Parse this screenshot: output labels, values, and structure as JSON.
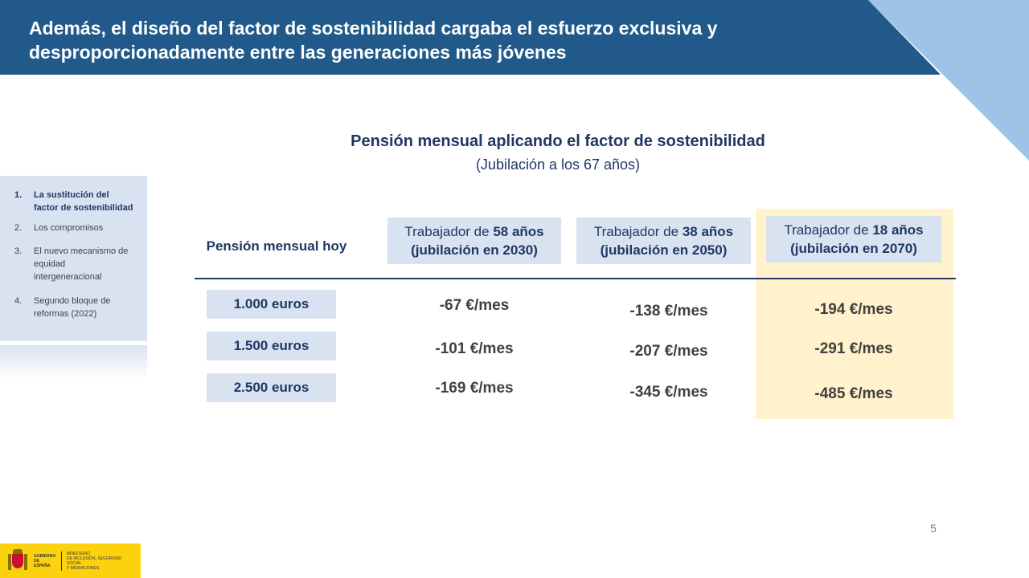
{
  "header": {
    "title": "Además, el diseño del factor de sostenibilidad cargaba el esfuerzo exclusiva y desproporcionadamente entre las generaciones más jóvenes"
  },
  "sidebar": {
    "items": [
      {
        "num": "1.",
        "label": "La sustitución del factor de sostenibilidad",
        "active": true
      },
      {
        "num": "2.",
        "label": "Los compromisos",
        "active": false
      },
      {
        "num": "3.",
        "label": "El nuevo mecanismo de equidad intergeneracional",
        "active": false
      },
      {
        "num": "4.",
        "label": "Segundo bloque de reformas (2022)",
        "active": false
      }
    ]
  },
  "table": {
    "title": "Pensión mensual aplicando el factor de sostenibilidad",
    "subtitle": "(Jubilación a los 67 años)",
    "row_header": "Pensión mensual hoy",
    "columns": [
      {
        "prefix": "Trabajador de ",
        "age": "58 años",
        "retirement": "(jubilación en 2030)"
      },
      {
        "prefix": "Trabajador de ",
        "age": "38 años",
        "retirement": "(jubilación en 2050)"
      },
      {
        "prefix": "Trabajador de ",
        "age": "18 años",
        "retirement": "(jubilación en 2070)"
      }
    ],
    "rows": [
      {
        "label": "1.000 euros",
        "values": [
          "-67 €/mes",
          "-138 €/mes",
          "-194 €/mes"
        ]
      },
      {
        "label": "1.500 euros",
        "values": [
          "-101 €/mes",
          "-207 €/mes",
          "-291 €/mes"
        ]
      },
      {
        "label": "2.500 euros",
        "values": [
          "-169 €/mes",
          "-345 €/mes",
          "-485 €/mes"
        ]
      }
    ]
  },
  "page_number": "5",
  "footer": {
    "gov_line1": "GOBIERNO",
    "gov_line2": "DE ESPAÑA",
    "ministry_line1": "MINISTERIO",
    "ministry_line2": "DE INCLUSIÓN, SEGURIDAD SOCIAL",
    "ministry_line3": "Y MIGRACIONES"
  },
  "colors": {
    "header_blue": "#215a8a",
    "accent_light_blue": "#9dc3e6",
    "cell_blue": "#d9e2f1",
    "highlight_yellow": "#fff2cc",
    "text_navy": "#1f3864",
    "logo_yellow": "#fcd20f"
  }
}
